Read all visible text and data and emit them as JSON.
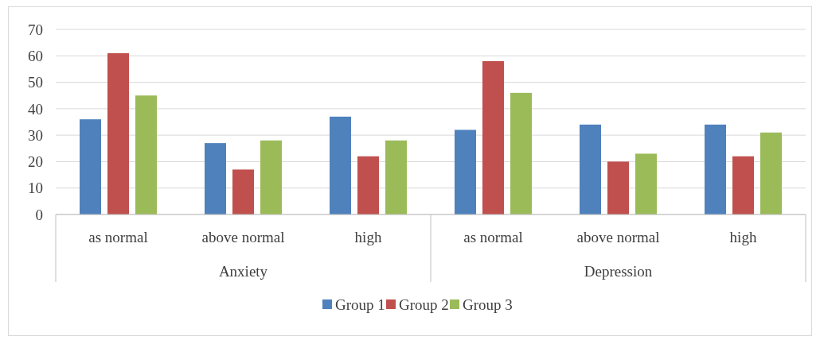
{
  "chart_data": {
    "type": "bar",
    "categories": [
      "as normal",
      "above normal",
      "high",
      "as normal",
      "above normal",
      "high"
    ],
    "series": [
      {
        "name": "Group 1",
        "color": "#4f81bd",
        "values": [
          36,
          27,
          37,
          32,
          34,
          34
        ]
      },
      {
        "name": "Group 2",
        "color": "#c0504d",
        "values": [
          61,
          17,
          22,
          58,
          20,
          22
        ]
      },
      {
        "name": "Group 3",
        "color": "#9bbb59",
        "values": [
          45,
          28,
          28,
          46,
          23,
          31
        ]
      }
    ],
    "annotations": [
      "Anxiety",
      "Depression"
    ],
    "ylim": [
      0,
      70
    ],
    "yticks": [
      0,
      10,
      20,
      30,
      40,
      50,
      60,
      70
    ],
    "grid": "y",
    "legend": "bottom"
  }
}
